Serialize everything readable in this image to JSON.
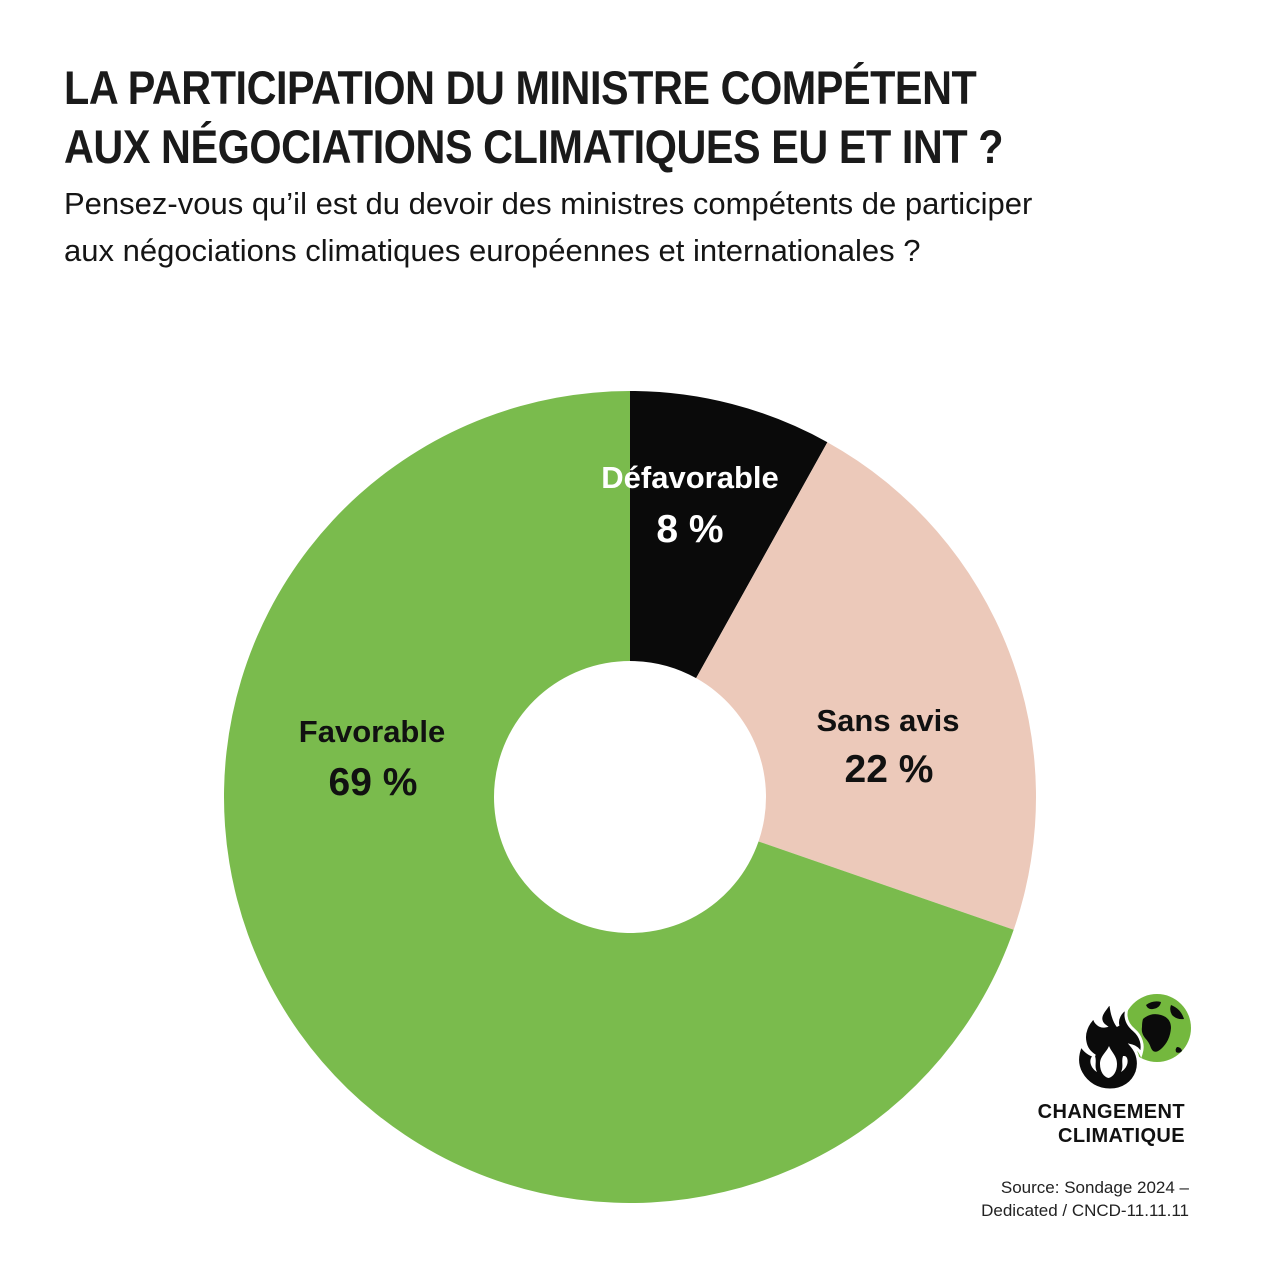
{
  "header": {
    "title_line1": "LA PARTICIPATION DU MINISTRE COMPÉTENT",
    "title_line2": "AUX NÉGOCIATIONS CLIMATIQUES EU ET INT ?",
    "subtitle_line1": "Pensez-vous qu’il est du devoir des ministres compétents de participer",
    "subtitle_line2": "aux négociations climatiques européennes et internationales ?"
  },
  "chart_data": {
    "type": "pie",
    "variant": "donut",
    "title": "",
    "categories": [
      "Défavorable",
      "Sans avis",
      "Favorable"
    ],
    "values": [
      8,
      22,
      69
    ],
    "value_labels": [
      "8 %",
      "22 %",
      "69 %"
    ],
    "colors": [
      "#0a0a0a",
      "#ecc9ba",
      "#7abb4d"
    ],
    "label_text_colors": [
      "#ffffff",
      "#111111",
      "#111111"
    ],
    "start_angle_deg": 0,
    "direction": "clockwise",
    "inner_radius_ratio": 0.335,
    "legend_position": "none",
    "labels_on_slices": true
  },
  "logo": {
    "icon": "flame-globe-icon",
    "line1": "CHANGEMENT",
    "line2": "CLIMATIQUE",
    "flame_color": "#0b0b0b",
    "globe_color": "#74b83e",
    "continent_color": "#0b0b0b"
  },
  "source": {
    "line1": "Source: Sondage 2024 –",
    "line2": "Dedicated /  CNCD-11.11.11"
  }
}
